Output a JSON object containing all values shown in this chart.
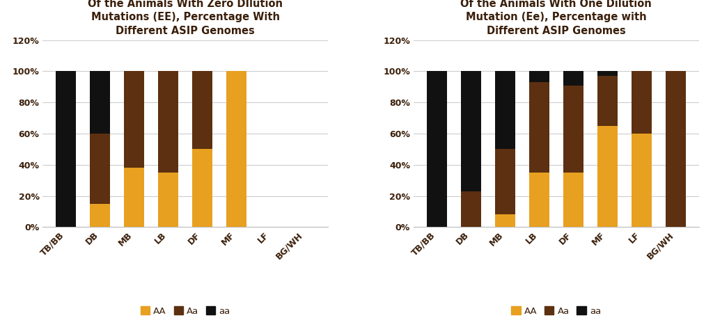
{
  "chart1": {
    "title": "Of the Animals With Zero DIlution\nMutations (EE), Percentage With\nDifferent ASIP Genomes",
    "categories": [
      "TB/BB",
      "DB",
      "MB",
      "LB",
      "DF",
      "MF",
      "LF",
      "BG/WH"
    ],
    "AA": [
      0,
      0.15,
      0.38,
      0.35,
      0.5,
      1.0,
      0,
      0
    ],
    "Aa": [
      0,
      0.45,
      0.62,
      0.65,
      0.5,
      0,
      0,
      0
    ],
    "aa": [
      1.0,
      0.4,
      0,
      0,
      0,
      0,
      0,
      0
    ]
  },
  "chart2": {
    "title": "Of the Animals With One Dilution\nMutation (Ee), Percentage with\nDifferent ASIP Genomes",
    "categories": [
      "TB/BB",
      "DB",
      "MB",
      "LB",
      "DF",
      "MF",
      "LF",
      "BG/WH"
    ],
    "AA": [
      0,
      0,
      0.08,
      0.35,
      0.35,
      0.65,
      0.6,
      0
    ],
    "Aa": [
      0,
      0.23,
      0.42,
      0.58,
      0.56,
      0.32,
      0.4,
      1.0
    ],
    "aa": [
      1.0,
      0.77,
      0.5,
      0.07,
      0.09,
      0.03,
      0,
      0
    ]
  },
  "colors": {
    "AA": "#E8A020",
    "Aa": "#5C3010",
    "aa": "#111111"
  },
  "ylim": [
    0,
    1.2
  ],
  "yticks": [
    0,
    0.2,
    0.4,
    0.6,
    0.8,
    1.0,
    1.2
  ],
  "ytick_labels": [
    "0%",
    "20%",
    "40%",
    "60%",
    "80%",
    "100%",
    "120%"
  ],
  "title_fontsize": 10.5,
  "tick_fontsize": 9,
  "legend_fontsize": 9.5,
  "bar_width": 0.6,
  "title_color": "#3B1F0A",
  "tick_color": "#3B1F0A",
  "background_color": "#FFFFFF",
  "grid_color": "#CCCCCC"
}
